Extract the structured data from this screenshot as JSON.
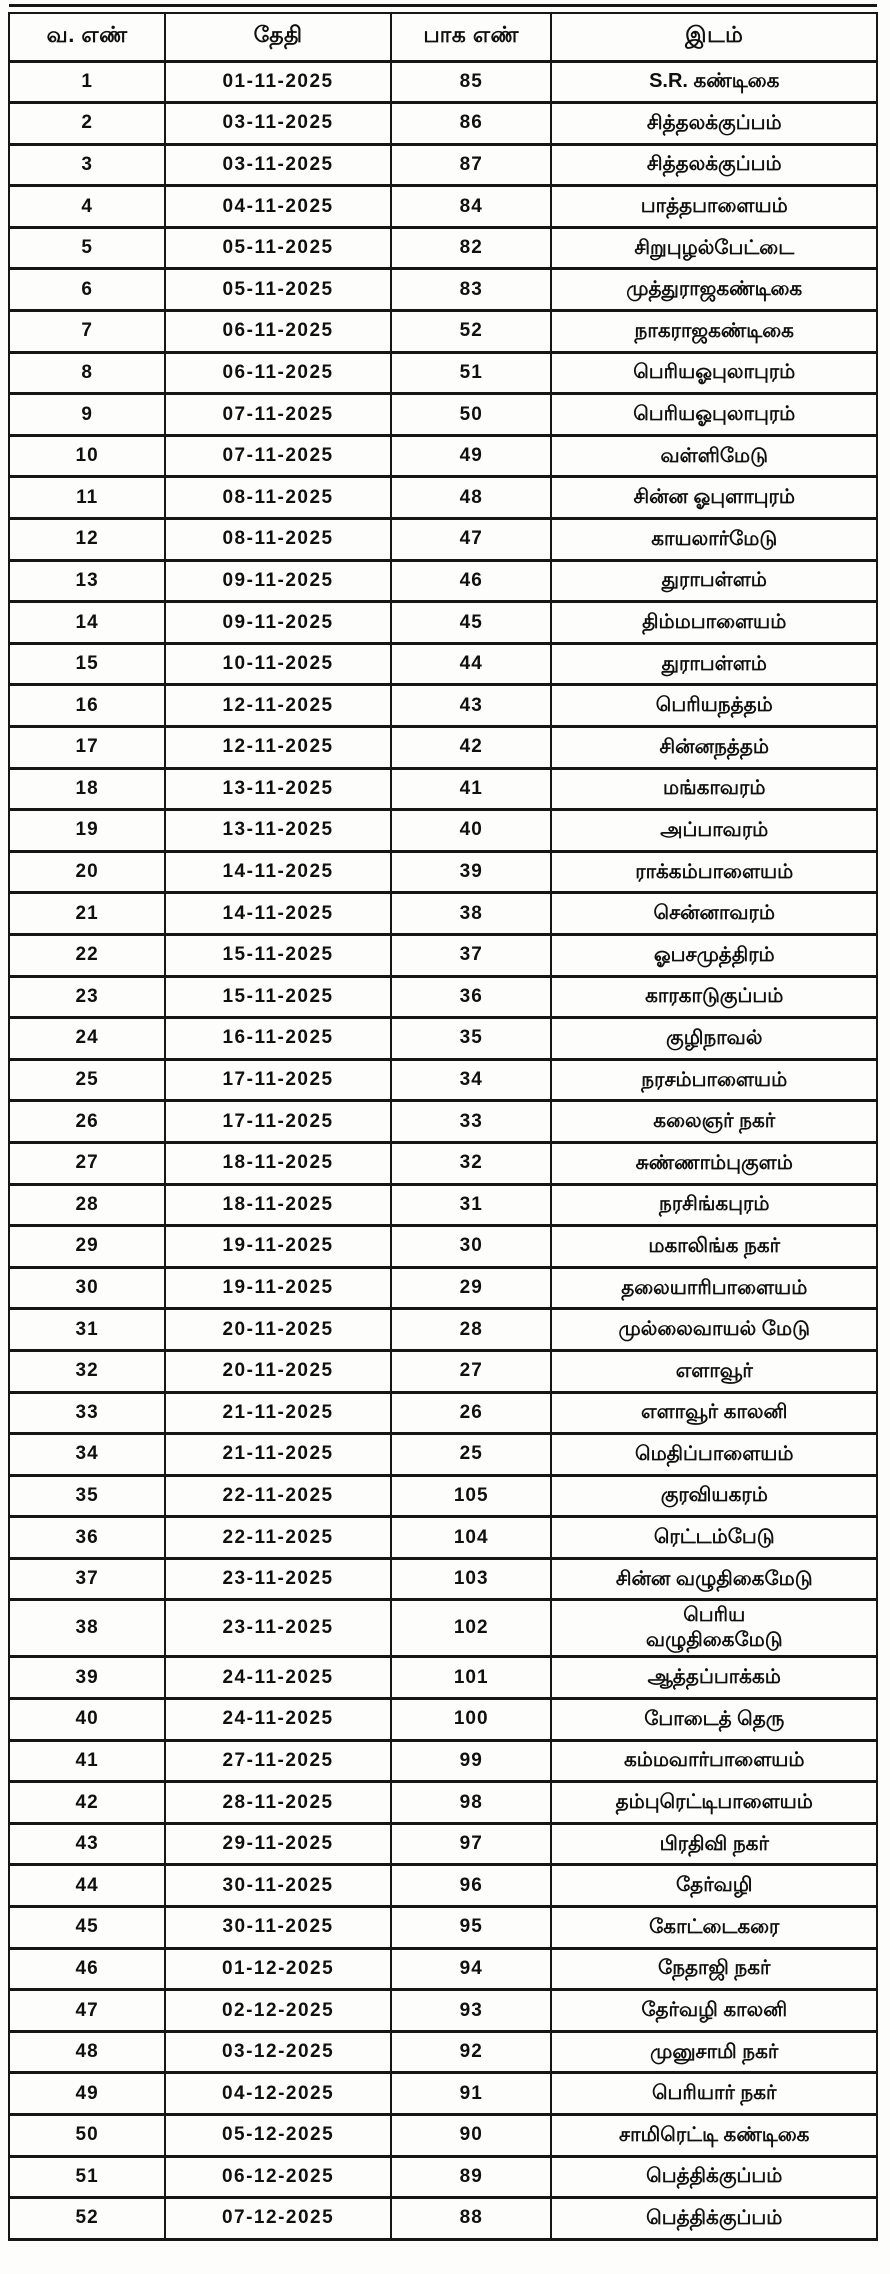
{
  "table": {
    "columns": [
      "வ. எண்",
      "தேதி",
      "பாக எண்",
      "இடம்"
    ],
    "rows": [
      {
        "sno": "1",
        "date": "01-11-2025",
        "part": "85",
        "place": "S.R. கண்டிகை"
      },
      {
        "sno": "2",
        "date": "03-11-2025",
        "part": "86",
        "place": "சித்தலக்குப்பம்"
      },
      {
        "sno": "3",
        "date": "03-11-2025",
        "part": "87",
        "place": "சித்தலக்குப்பம்"
      },
      {
        "sno": "4",
        "date": "04-11-2025",
        "part": "84",
        "place": "பாத்தபாளையம்"
      },
      {
        "sno": "5",
        "date": "05-11-2025",
        "part": "82",
        "place": "சிறுபுழல்பேட்டை"
      },
      {
        "sno": "6",
        "date": "05-11-2025",
        "part": "83",
        "place": "முத்துராஜகண்டிகை"
      },
      {
        "sno": "7",
        "date": "06-11-2025",
        "part": "52",
        "place": "நாகராஜகண்டிகை"
      },
      {
        "sno": "8",
        "date": "06-11-2025",
        "part": "51",
        "place": "பெரியஓபுலாபுரம்"
      },
      {
        "sno": "9",
        "date": "07-11-2025",
        "part": "50",
        "place": "பெரியஓபுலாபுரம்"
      },
      {
        "sno": "10",
        "date": "07-11-2025",
        "part": "49",
        "place": "வள்ளிமேடு"
      },
      {
        "sno": "11",
        "date": "08-11-2025",
        "part": "48",
        "place": "சின்ன ஓபுளாபுரம்"
      },
      {
        "sno": "12",
        "date": "08-11-2025",
        "part": "47",
        "place": "காயலார்மேடு"
      },
      {
        "sno": "13",
        "date": "09-11-2025",
        "part": "46",
        "place": "துராபள்ளம்"
      },
      {
        "sno": "14",
        "date": "09-11-2025",
        "part": "45",
        "place": "திம்மபாளையம்"
      },
      {
        "sno": "15",
        "date": "10-11-2025",
        "part": "44",
        "place": "துராபள்ளம்"
      },
      {
        "sno": "16",
        "date": "12-11-2025",
        "part": "43",
        "place": "பெரியநத்தம்"
      },
      {
        "sno": "17",
        "date": "12-11-2025",
        "part": "42",
        "place": "சின்னநத்தம்"
      },
      {
        "sno": "18",
        "date": "13-11-2025",
        "part": "41",
        "place": "மங்காவரம்"
      },
      {
        "sno": "19",
        "date": "13-11-2025",
        "part": "40",
        "place": "அப்பாவரம்"
      },
      {
        "sno": "20",
        "date": "14-11-2025",
        "part": "39",
        "place": "ராக்கம்பாளையம்"
      },
      {
        "sno": "21",
        "date": "14-11-2025",
        "part": "38",
        "place": "சென்னாவரம்"
      },
      {
        "sno": "22",
        "date": "15-11-2025",
        "part": "37",
        "place": "ஓபசமுத்திரம்"
      },
      {
        "sno": "23",
        "date": "15-11-2025",
        "part": "36",
        "place": "காரகாடுகுப்பம்"
      },
      {
        "sno": "24",
        "date": "16-11-2025",
        "part": "35",
        "place": "குழிநாவல்"
      },
      {
        "sno": "25",
        "date": "17-11-2025",
        "part": "34",
        "place": "நரசம்பாளையம்"
      },
      {
        "sno": "26",
        "date": "17-11-2025",
        "part": "33",
        "place": "கலைஞர் நகர்"
      },
      {
        "sno": "27",
        "date": "18-11-2025",
        "part": "32",
        "place": "சுண்ணாம்புகுளம்"
      },
      {
        "sno": "28",
        "date": "18-11-2025",
        "part": "31",
        "place": "நரசிங்கபுரம்"
      },
      {
        "sno": "29",
        "date": "19-11-2025",
        "part": "30",
        "place": "மகாலிங்க நகர்"
      },
      {
        "sno": "30",
        "date": "19-11-2025",
        "part": "29",
        "place": "தலையாரிபாளையம்"
      },
      {
        "sno": "31",
        "date": "20-11-2025",
        "part": "28",
        "place": "முல்லைவாயல் மேடு"
      },
      {
        "sno": "32",
        "date": "20-11-2025",
        "part": "27",
        "place": "எளாவூர்"
      },
      {
        "sno": "33",
        "date": "21-11-2025",
        "part": "26",
        "place": "எளாவூர் காலனி"
      },
      {
        "sno": "34",
        "date": "21-11-2025",
        "part": "25",
        "place": "மெதிப்பாளையம்"
      },
      {
        "sno": "35",
        "date": "22-11-2025",
        "part": "105",
        "place": "குரவியகரம்"
      },
      {
        "sno": "36",
        "date": "22-11-2025",
        "part": "104",
        "place": "ரெட்டம்பேடு"
      },
      {
        "sno": "37",
        "date": "23-11-2025",
        "part": "103",
        "place": "சின்ன வழுதிகைமேடு"
      },
      {
        "sno": "38",
        "date": "23-11-2025",
        "part": "102",
        "place": "பெரிய\nவழுதிகைமேடு"
      },
      {
        "sno": "39",
        "date": "24-11-2025",
        "part": "101",
        "place": "ஆத்தப்பாக்கம்"
      },
      {
        "sno": "40",
        "date": "24-11-2025",
        "part": "100",
        "place": "போடைத் தெரு"
      },
      {
        "sno": "41",
        "date": "27-11-2025",
        "part": "99",
        "place": "கம்மவார்பாளையம்"
      },
      {
        "sno": "42",
        "date": "28-11-2025",
        "part": "98",
        "place": "தம்புரெட்டிபாளையம்"
      },
      {
        "sno": "43",
        "date": "29-11-2025",
        "part": "97",
        "place": "பிரதிவி நகர்"
      },
      {
        "sno": "44",
        "date": "30-11-2025",
        "part": "96",
        "place": "தேர்வழி"
      },
      {
        "sno": "45",
        "date": "30-11-2025",
        "part": "95",
        "place": "கோட்டைகரை"
      },
      {
        "sno": "46",
        "date": "01-12-2025",
        "part": "94",
        "place": "நேதாஜி நகர்"
      },
      {
        "sno": "47",
        "date": "02-12-2025",
        "part": "93",
        "place": "தேர்வழி காலனி"
      },
      {
        "sno": "48",
        "date": "03-12-2025",
        "part": "92",
        "place": "முனுசாமி நகர்"
      },
      {
        "sno": "49",
        "date": "04-12-2025",
        "part": "91",
        "place": "பெரியார் நகர்"
      },
      {
        "sno": "50",
        "date": "05-12-2025",
        "part": "90",
        "place": "சாமிரெட்டி கண்டிகை"
      },
      {
        "sno": "51",
        "date": "06-12-2025",
        "part": "89",
        "place": "பெத்திக்குப்பம்"
      },
      {
        "sno": "52",
        "date": "07-12-2025",
        "part": "88",
        "place": "பெத்திக்குப்பம்"
      }
    ],
    "text_color": "#101010",
    "border_color": "#161616",
    "background_color": "#fdfdfc"
  }
}
